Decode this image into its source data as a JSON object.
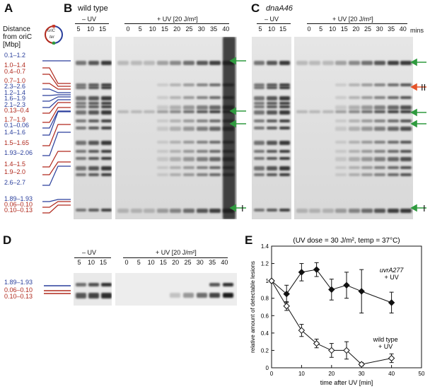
{
  "panels": {
    "A": {
      "label": "A",
      "heading_line1": "Distance",
      "heading_line2": "from oriC",
      "heading_line3": "[Mbp]",
      "plasmid_ori": "oriC",
      "plasmid_ter": "ter",
      "items": [
        {
          "text": "0.1–1.2",
          "color": "blue"
        },
        {
          "text": "1.0–1.4",
          "color": "red"
        },
        {
          "text": "0.4–0.7",
          "color": "red"
        },
        {
          "text": "0.7–1.0",
          "color": "red"
        },
        {
          "text": "2.3–2.6",
          "color": "blue"
        },
        {
          "text": "1.2–1.4",
          "color": "blue"
        },
        {
          "text": "1.6–1.9",
          "color": "blue"
        },
        {
          "text": "2.1–2.3",
          "color": "blue"
        },
        {
          "text": "0.13–0.4",
          "color": "red"
        },
        {
          "text": "1.7–1.9",
          "color": "red"
        },
        {
          "text": "0.1–0.06",
          "color": "blue"
        },
        {
          "text": "1.4–1.6",
          "color": "blue"
        },
        {
          "text": "1.5–1.65",
          "color": "red"
        },
        {
          "text": "1.93–2.06",
          "color": "blue"
        },
        {
          "text": "1.4–1.5",
          "color": "red"
        },
        {
          "text": "1.9–2.0",
          "color": "red"
        },
        {
          "text": "2.6–2.7",
          "color": "blue"
        },
        {
          "text": "1.89–1.93",
          "color": "blue"
        },
        {
          "text": "0.06–0.10",
          "color": "red"
        },
        {
          "text": "0.10–0.13",
          "color": "red"
        }
      ]
    },
    "B": {
      "label": "B",
      "title": "wild type",
      "minus_uv": "– UV",
      "plus_uv": "+ UV [20 J/m²]",
      "minus_lanes": [
        "5",
        "10",
        "15"
      ],
      "plus_lanes": [
        "0",
        "5",
        "10",
        "15",
        "20",
        "25",
        "30",
        "35",
        "40"
      ],
      "marker_I": "I"
    },
    "C": {
      "label": "C",
      "title": "dnaA46",
      "minus_uv": "– UV",
      "plus_uv": "+ UV [20 J/m²]",
      "minus_lanes": [
        "5",
        "10",
        "15"
      ],
      "plus_lanes": [
        "0",
        "5",
        "10",
        "15",
        "20",
        "25",
        "30",
        "35",
        "40"
      ],
      "mins": "mins",
      "marker_II": "II",
      "marker_I": "I"
    },
    "D": {
      "label": "D",
      "minus_uv": "– UV",
      "plus_uv": "+ UV [20 J/m²]",
      "minus_lanes": [
        "5",
        "10",
        "15"
      ],
      "plus_lanes": [
        "0",
        "5",
        "10",
        "15",
        "20",
        "25",
        "30",
        "35",
        "40"
      ],
      "items": [
        {
          "text": "1.89–1.93",
          "color": "blue"
        },
        {
          "text": "0.06–0.10",
          "color": "red"
        },
        {
          "text": "0.10–0.13",
          "color": "red"
        }
      ]
    },
    "E": {
      "label": "E",
      "title": "(UV dose = 30 J/m², temp = 37°C)",
      "ylabel": "relative amount of detectable lesions",
      "xlabel": "time after UV [min]",
      "series_a_line1": "uvrA277",
      "series_a_line2": "+ UV",
      "series_b_line1": "wild type",
      "series_b_line2": "+ UV"
    }
  },
  "chart_data": {
    "type": "line",
    "title": "(UV dose = 30 J/m², temp = 37°C)",
    "xlabel": "time after UV [min]",
    "ylabel": "relative amount of detectable lesions",
    "xlim": [
      0,
      50
    ],
    "ylim": [
      0,
      1.4
    ],
    "xticks": [
      "0",
      "10",
      "20",
      "30",
      "40",
      "50"
    ],
    "yticks": [
      "0",
      "0.2",
      "0.4",
      "0.6",
      "0.8",
      "1",
      "1.2",
      "1.4"
    ],
    "series": [
      {
        "name": "uvrA277 + UV",
        "marker": "filled-diamond",
        "color": "#111111",
        "x": [
          0,
          5,
          10,
          15,
          20,
          25,
          30,
          40
        ],
        "y": [
          1.0,
          0.85,
          1.1,
          1.13,
          0.9,
          0.95,
          0.88,
          0.75
        ],
        "err": [
          0.0,
          0.1,
          0.1,
          0.08,
          0.12,
          0.15,
          0.25,
          0.12
        ]
      },
      {
        "name": "wild type + UV",
        "marker": "open-diamond",
        "color": "#111111",
        "x": [
          0,
          5,
          10,
          15,
          20,
          25,
          30,
          40
        ],
        "y": [
          1.0,
          0.71,
          0.43,
          0.28,
          0.2,
          0.2,
          0.04,
          0.11
        ],
        "err": [
          0.0,
          0.05,
          0.07,
          0.05,
          0.08,
          0.1,
          0.02,
          0.05
        ]
      }
    ]
  }
}
